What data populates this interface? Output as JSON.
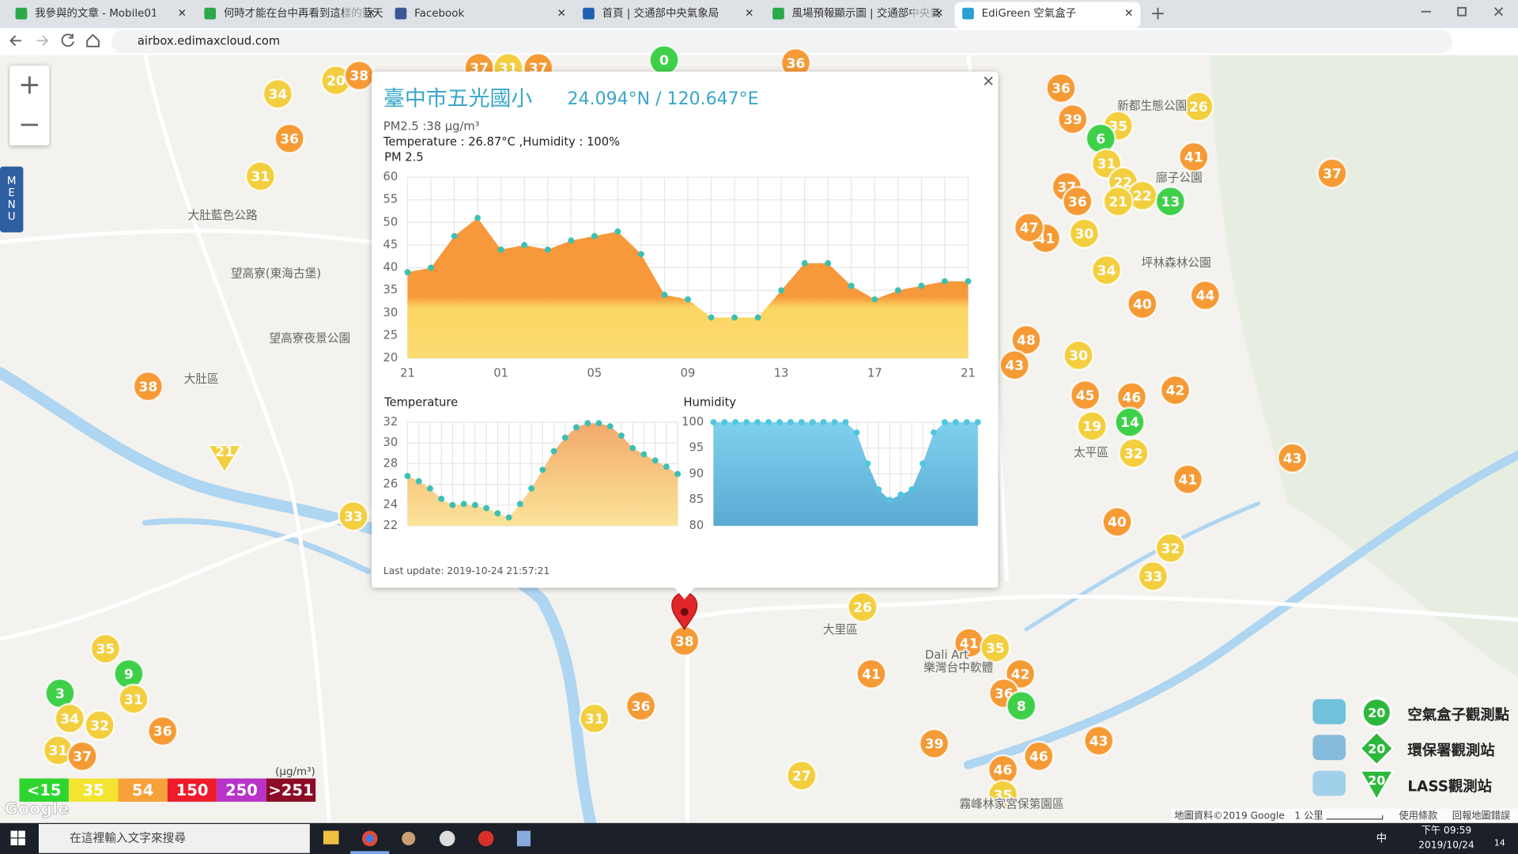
{
  "browser": {
    "tabs": [
      "我參與的文章 - Mobile01",
      "何時才能在台中再看到這樣的藍天",
      "Facebook",
      "首頁 | 交通部中央氣象局",
      "風場預報顯示圖 | 交通部中央氣",
      "EdiGreen 空氣盒子"
    ],
    "url": "airbox.edimaxcloud.com"
  },
  "map": {
    "zoom_in": "+",
    "zoom_out": "−",
    "menu": "MENU",
    "place_labels": [
      "大肚區",
      "太平區",
      "大肚藍色公路",
      "望高寮(東海古堡)",
      "望高寮夜景公園",
      "新都生態公園",
      "廍子公園",
      "坪林森林公園",
      "霧峰林家宮保第園區",
      "Dali Art",
      "樂灣台中軟體",
      "大里區"
    ],
    "markers": [
      20,
      38,
      34,
      36,
      31,
      37,
      31,
      37,
      0,
      36,
      36,
      39,
      35,
      6,
      26,
      41,
      31,
      37,
      37,
      36,
      22,
      22,
      21,
      13,
      41,
      30,
      47,
      34,
      44,
      40,
      48,
      43,
      30,
      45,
      46,
      42,
      19,
      14,
      32,
      43,
      41,
      40,
      32,
      33,
      38,
      33,
      26,
      38,
      41,
      35,
      42,
      41,
      36,
      8,
      36,
      31,
      39,
      43,
      46,
      46,
      35,
      27,
      35,
      9,
      3,
      31,
      34,
      32,
      36,
      31,
      37,
      21
    ],
    "attribution": "地圖資料©2019 Google",
    "scale": "1 公里",
    "terms": "使用條款",
    "report": "回報地圖錯誤",
    "logo": "Google"
  },
  "legend": {
    "unit": "(μg/m³)",
    "levels": [
      "<15",
      "35",
      "54",
      "150",
      "250",
      ">251"
    ]
  },
  "station_legend": {
    "items": [
      {
        "label": "空氣盒子觀測點",
        "badge": 20
      },
      {
        "label": "環保署觀測站",
        "badge": 20
      },
      {
        "label": "LASS觀測站",
        "badge": 20
      }
    ]
  },
  "popup": {
    "title": "臺中市五光國小",
    "coords": "24.094°N / 120.647°E",
    "pm25_text": "PM2.5 :38 μg/m³",
    "weather_text": "Temperature : 26.87°C ,Humidity : 100%",
    "last_update": "Last update: 2019-10-24 21:57:21",
    "close": "×"
  },
  "chart_data": [
    {
      "type": "area",
      "title": "PM 2.5",
      "categories": [
        "21",
        null,
        null,
        null,
        "01",
        null,
        null,
        null,
        "05",
        null,
        null,
        null,
        "09",
        null,
        null,
        null,
        "13",
        null,
        null,
        null,
        "17",
        null,
        null,
        null,
        "21"
      ],
      "values": [
        39,
        40,
        47,
        51,
        44,
        45,
        44,
        46,
        47,
        48,
        43,
        34,
        33,
        29,
        29,
        29,
        35,
        41,
        41,
        36,
        33,
        35,
        36,
        37,
        37
      ],
      "ylim": [
        20,
        60
      ],
      "yticks": [
        20,
        25,
        30,
        35,
        40,
        45,
        50,
        55,
        60
      ],
      "grid": true,
      "color": "#f7983a"
    },
    {
      "type": "area",
      "title": "Temperature",
      "values": [
        26.8,
        26.3,
        25.6,
        24.6,
        24.0,
        24.1,
        24.0,
        23.7,
        23.2,
        22.8,
        24.1,
        25.6,
        27.4,
        29.2,
        30.5,
        31.5,
        31.9,
        31.9,
        31.6,
        30.7,
        29.5,
        28.9,
        28.3,
        27.7,
        27.0
      ],
      "ylim": [
        22,
        32
      ],
      "yticks": [
        22,
        24,
        26,
        28,
        30,
        32
      ],
      "grid": true,
      "color": "#f4b57a"
    },
    {
      "type": "area",
      "title": "Humidity",
      "values": [
        100,
        100,
        100,
        100,
        100,
        100,
        100,
        100,
        100,
        100,
        100,
        100,
        100,
        98,
        92,
        87,
        85,
        86,
        87,
        92,
        98,
        100,
        100,
        100,
        100
      ],
      "ylim": [
        80,
        100
      ],
      "yticks": [
        80,
        85,
        90,
        95,
        100
      ],
      "grid": true,
      "color": "#6ec1e4"
    }
  ],
  "taskbar": {
    "search": "在這裡輸入文字來搜尋",
    "time": "下午 09:59",
    "date": "2019/10/24",
    "ime": "中",
    "notifications": "14"
  }
}
